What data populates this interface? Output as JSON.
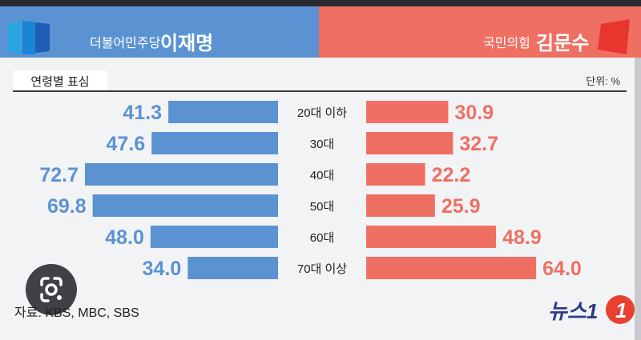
{
  "header": {
    "left_party": "더불어민주당",
    "left_name": "이재명",
    "right_party": "국민의힘",
    "right_name": "김문수"
  },
  "subtitle": "연령별 표심",
  "unit": "단위: %",
  "source": "자료: KBS, MBC, SBS",
  "brand": "뉴스1",
  "icons": [
    "democratic-party-logo-icon",
    "ppp-logo-icon",
    "google-lens-icon",
    "news1-logo-icon"
  ],
  "colors": {
    "left": "#5b93d2",
    "right": "#ef6f63"
  },
  "chart_data": {
    "type": "bar",
    "categories": [
      "20대 이하",
      "30대",
      "40대",
      "50대",
      "60대",
      "70대 이상"
    ],
    "series": [
      {
        "name": "이재명",
        "values": [
          41.3,
          47.6,
          72.7,
          69.8,
          48.0,
          34.0
        ],
        "labels": [
          "41.3",
          "47.6",
          "72.7",
          "69.8",
          "48.0",
          "34.0"
        ]
      },
      {
        "name": "김문수",
        "values": [
          30.9,
          32.7,
          22.2,
          25.9,
          48.9,
          64.0
        ],
        "labels": [
          "30.9",
          "32.7",
          "22.2",
          "25.9",
          "48.9",
          "64.0"
        ]
      }
    ],
    "title": "연령별 표심",
    "unit": "%",
    "legend": "top"
  }
}
